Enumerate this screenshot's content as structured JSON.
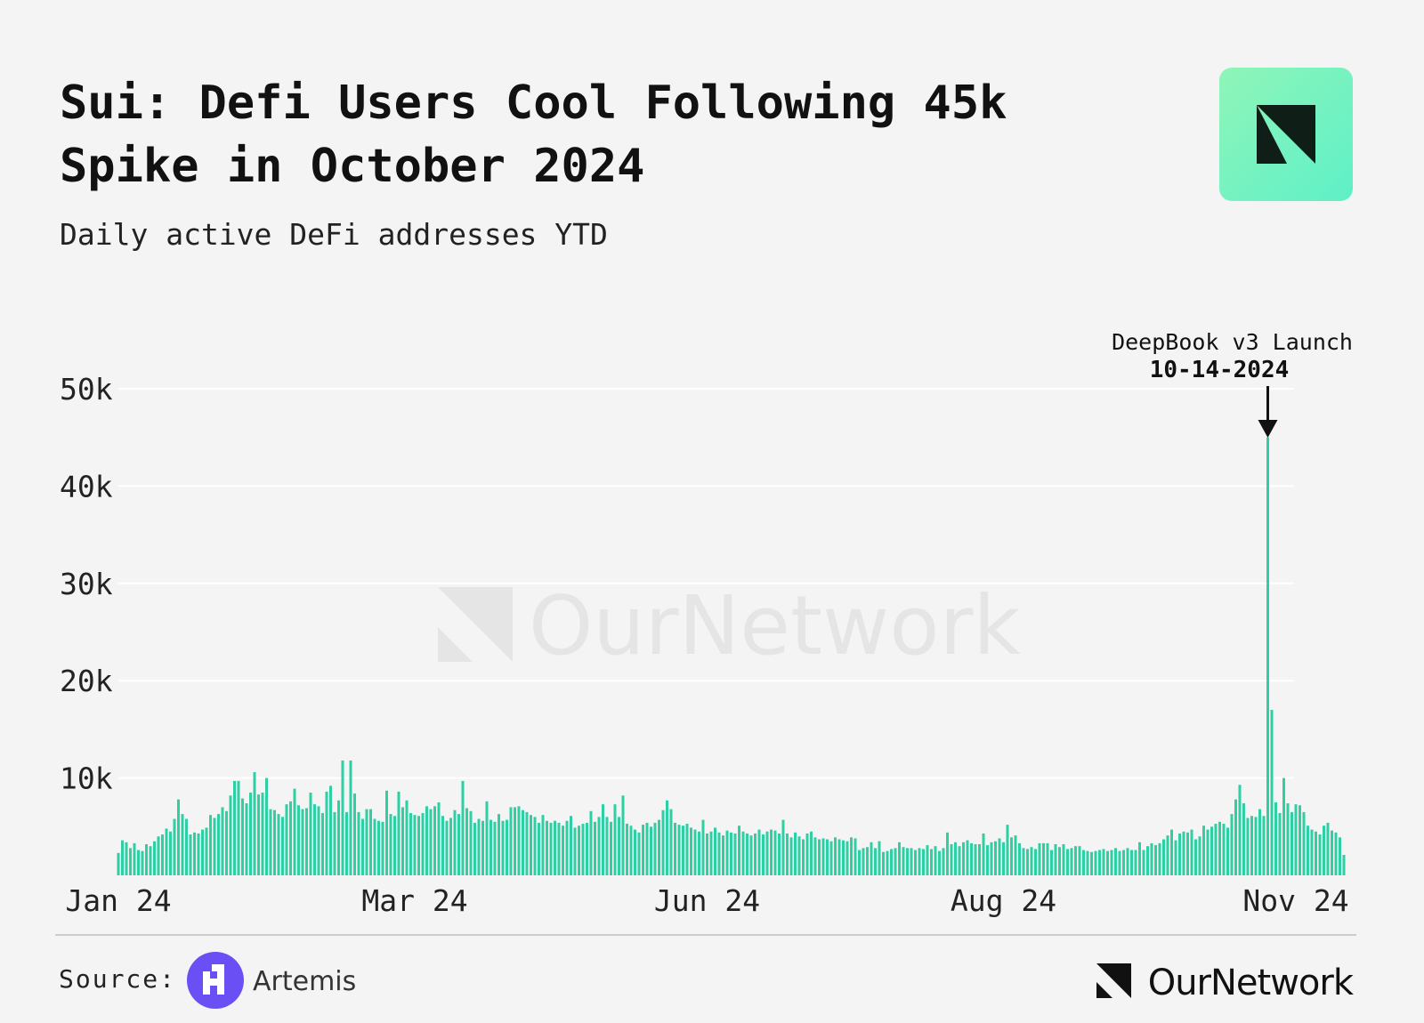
{
  "chart_data": {
    "type": "bar",
    "title": "Sui: Defi Users Cool Following 45k Spike in October 2024",
    "subtitle": "Daily active DeFi addresses YTD",
    "annotation": {
      "text": "DeepBook v3 Launch",
      "date": "10-14-2024",
      "index": 287
    },
    "watermark": "OurNetwork",
    "source_label": "Source:",
    "source_name": "Artemis",
    "brand": "OurNetwork",
    "color": "#2dcfa3",
    "grid": true,
    "ylim": [
      0,
      50000
    ],
    "yticks": [
      {
        "value": 10000,
        "label": "10k"
      },
      {
        "value": 20000,
        "label": "20k"
      },
      {
        "value": 30000,
        "label": "30k"
      },
      {
        "value": 40000,
        "label": "40k"
      },
      {
        "value": 50000,
        "label": "50k"
      }
    ],
    "categories": [
      "Jan 24",
      null,
      null,
      null,
      null,
      null,
      null,
      null,
      null,
      null,
      null,
      null,
      null,
      null,
      null,
      null,
      null,
      null,
      null,
      null,
      null,
      null,
      null,
      null,
      null,
      null,
      null,
      null,
      null,
      null,
      null,
      null,
      null,
      null,
      null,
      null,
      null,
      null,
      null,
      null,
      null,
      null,
      null,
      null,
      null,
      null,
      null,
      null,
      null,
      null,
      null,
      null,
      null,
      null,
      null,
      null,
      null,
      null,
      null,
      null,
      null,
      null,
      null,
      null,
      null,
      null,
      null,
      null,
      null,
      null,
      null,
      null,
      null,
      null,
      "Mar 24",
      null,
      null,
      null,
      null,
      null,
      null,
      null,
      null,
      null,
      null,
      null,
      null,
      null,
      null,
      null,
      null,
      null,
      null,
      null,
      null,
      null,
      null,
      null,
      null,
      null,
      null,
      null,
      null,
      null,
      null,
      null,
      null,
      null,
      null,
      null,
      null,
      null,
      null,
      null,
      null,
      null,
      null,
      null,
      null,
      null,
      null,
      null,
      null,
      null,
      null,
      null,
      null,
      null,
      null,
      null,
      null,
      null,
      null,
      null,
      null,
      null,
      null,
      null,
      null,
      null,
      null,
      null,
      null,
      null,
      null,
      null,
      null,
      "Jun 24",
      null,
      null,
      null,
      null,
      null,
      null,
      null,
      null,
      null,
      null,
      null,
      null,
      null,
      null,
      null,
      null,
      null,
      null,
      null,
      null,
      null,
      null,
      null,
      null,
      null,
      null,
      null,
      null,
      null,
      null,
      null,
      null,
      null,
      null,
      null,
      null,
      null,
      null,
      null,
      null,
      null,
      null,
      null,
      null,
      null,
      null,
      null,
      null,
      null,
      null,
      null,
      null,
      null,
      null,
      null,
      null,
      null,
      null,
      null,
      null,
      null,
      null,
      null,
      null,
      null,
      null,
      null,
      null,
      null,
      null,
      null,
      null,
      null,
      "Aug 24",
      null,
      null,
      null,
      null,
      null,
      null,
      null,
      null,
      null,
      null,
      null,
      null,
      null,
      null,
      null,
      null,
      null,
      null,
      null,
      null,
      null,
      null,
      null,
      null,
      null,
      null,
      null,
      null,
      null,
      null,
      null,
      null,
      null,
      null,
      null,
      null,
      null,
      null,
      null,
      null,
      null,
      null,
      null,
      null,
      null,
      null,
      null,
      null,
      null,
      null,
      null,
      null,
      null,
      null,
      null,
      null,
      null,
      null,
      null,
      null,
      null,
      null,
      null,
      null,
      null,
      null,
      null,
      null,
      null,
      null,
      null,
      null,
      "Nov 24",
      null,
      null,
      null,
      null,
      null,
      null,
      null,
      null,
      null,
      null,
      null,
      null
    ],
    "values": [
      2300,
      3600,
      3400,
      2800,
      3300,
      2600,
      2500,
      3200,
      3000,
      3500,
      4000,
      4200,
      4800,
      4500,
      5800,
      7800,
      6300,
      5800,
      4200,
      4400,
      4300,
      4700,
      4900,
      6200,
      5900,
      6300,
      7000,
      6600,
      8200,
      9700,
      9700,
      7900,
      7400,
      8500,
      10600,
      8300,
      8500,
      10000,
      6800,
      6700,
      6300,
      6000,
      7300,
      7600,
      8900,
      7200,
      6800,
      6900,
      8500,
      7300,
      7100,
      6400,
      8600,
      9200,
      6500,
      7700,
      11800,
      6500,
      11800,
      8400,
      6500,
      5800,
      6800,
      6800,
      5800,
      5600,
      5500,
      8700,
      6300,
      6100,
      8600,
      7000,
      7700,
      6400,
      6200,
      6100,
      6400,
      7100,
      6800,
      7100,
      7500,
      6100,
      5600,
      5900,
      6700,
      6300,
      9700,
      6900,
      6600,
      5400,
      5800,
      5600,
      7600,
      5700,
      5500,
      6300,
      5600,
      5700,
      7000,
      7000,
      7100,
      6700,
      6500,
      6200,
      6000,
      5400,
      6200,
      5600,
      5400,
      5600,
      5400,
      5100,
      5600,
      6100,
      4900,
      5100,
      5300,
      5400,
      6600,
      5500,
      6000,
      7300,
      6000,
      5500,
      7300,
      6000,
      8200,
      5300,
      5100,
      4700,
      4400,
      5200,
      5400,
      5000,
      5400,
      5700,
      6700,
      7700,
      6800,
      5400,
      5200,
      5100,
      5300,
      4900,
      4700,
      4500,
      5700,
      4300,
      4500,
      4900,
      4400,
      4100,
      4600,
      4400,
      4300,
      5100,
      4500,
      4300,
      4100,
      4300,
      4700,
      4200,
      4500,
      4700,
      4600,
      4300,
      5700,
      4300,
      3900,
      4400,
      4000,
      3700,
      4300,
      4500,
      3900,
      3700,
      3800,
      3700,
      3500,
      3900,
      3700,
      3600,
      3500,
      3900,
      3800,
      2600,
      2800,
      2900,
      3400,
      2800,
      3500,
      2400,
      2500,
      2700,
      2800,
      3400,
      2900,
      2800,
      2800,
      2600,
      2800,
      2700,
      3100,
      2700,
      3000,
      2500,
      2800,
      4400,
      3200,
      3400,
      3000,
      3400,
      3600,
      3300,
      3200,
      3200,
      4300,
      3100,
      3400,
      3500,
      3800,
      3400,
      5200,
      3900,
      4100,
      3300,
      2800,
      2700,
      2900,
      2700,
      3300,
      3300,
      3300,
      2600,
      3200,
      2900,
      3200,
      2700,
      2800,
      3000,
      3000,
      2600,
      2500,
      2400,
      2500,
      2600,
      2700,
      2500,
      2600,
      2800,
      2500,
      2600,
      2800,
      2600,
      2600,
      3400,
      2600,
      3000,
      3300,
      3100,
      3300,
      3700,
      4100,
      4700,
      3600,
      4300,
      4500,
      4400,
      4700,
      3700,
      4000,
      5100,
      4700,
      5000,
      5300,
      5500,
      5300,
      4900,
      6300,
      7800,
      9300,
      7400,
      5900,
      6100,
      6000,
      6800,
      6100,
      45000,
      17000,
      7500,
      6400,
      10000,
      7400,
      6500,
      7300,
      7200,
      6500,
      5100,
      4700,
      4500,
      4200,
      5100,
      5400,
      4600,
      4400,
      3900,
      2100
    ]
  }
}
